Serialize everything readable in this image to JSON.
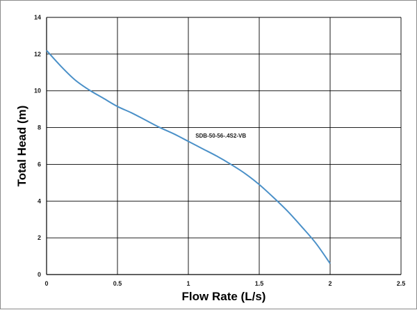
{
  "chart_data": {
    "type": "line",
    "title": "",
    "xlabel": "Flow Rate (L/s)",
    "ylabel": "Total Head (m)",
    "xlim": [
      0,
      2.5
    ],
    "ylim": [
      0,
      14
    ],
    "x_ticks": [
      0,
      0.5,
      1,
      1.5,
      2,
      2.5
    ],
    "x_tick_labels": [
      "0",
      "0.5",
      "1",
      "1.5",
      "2",
      "2.5"
    ],
    "y_ticks": [
      0,
      2,
      4,
      6,
      8,
      10,
      12,
      14
    ],
    "y_tick_labels": [
      "0",
      "2",
      "4",
      "6",
      "8",
      "10",
      "12",
      "14"
    ],
    "grid": true,
    "legend": "none",
    "series": [
      {
        "name": "SDB-50-56-.4S2-VB",
        "color": "#4a90c8",
        "x": [
          0,
          0.1,
          0.2,
          0.3,
          0.4,
          0.5,
          0.6,
          0.7,
          0.8,
          0.9,
          1.0,
          1.1,
          1.2,
          1.3,
          1.4,
          1.5,
          1.6,
          1.7,
          1.8,
          1.9,
          2.0
        ],
        "y": [
          12.2,
          11.35,
          10.6,
          10.05,
          9.6,
          9.15,
          8.8,
          8.4,
          8.0,
          7.65,
          7.25,
          6.85,
          6.45,
          6.0,
          5.5,
          4.9,
          4.2,
          3.45,
          2.6,
          1.7,
          0.6
        ]
      }
    ],
    "annotations": [
      {
        "text": "SDB-50-56-.4S2-VB",
        "x": 1.05,
        "y": 7.45
      }
    ]
  }
}
